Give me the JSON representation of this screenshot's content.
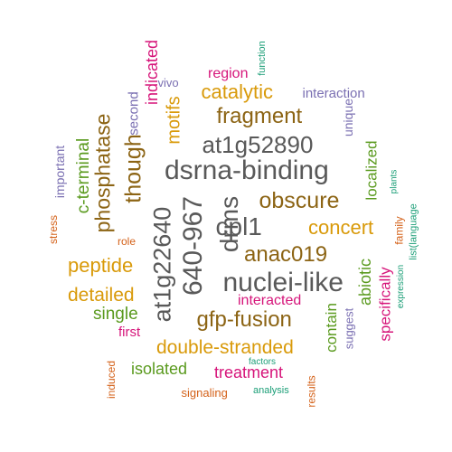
{
  "words": [
    {
      "text": "dsrna-binding",
      "color": "#595959"
    },
    {
      "text": "at1g52890",
      "color": "#595959"
    },
    {
      "text": "cpl1",
      "color": "#595959"
    },
    {
      "text": "nuclei-like",
      "color": "#595959"
    },
    {
      "text": "drms",
      "color": "#595959"
    },
    {
      "text": "640-967",
      "color": "#595959"
    },
    {
      "text": "at1g22640",
      "color": "#595959"
    },
    {
      "text": "though",
      "color": "#8c6414"
    },
    {
      "text": "phosphatase",
      "color": "#8c6414"
    },
    {
      "text": "fragment",
      "color": "#8c6414"
    },
    {
      "text": "obscure",
      "color": "#8c6414"
    },
    {
      "text": "anac019",
      "color": "#8c6414"
    },
    {
      "text": "gfp-fusion",
      "color": "#8c6414"
    },
    {
      "text": "catalytic",
      "color": "#d99a0a"
    },
    {
      "text": "motifs",
      "color": "#d99a0a"
    },
    {
      "text": "concert",
      "color": "#d99a0a"
    },
    {
      "text": "peptide",
      "color": "#d99a0a"
    },
    {
      "text": "detailed",
      "color": "#d99a0a"
    },
    {
      "text": "double-stranded",
      "color": "#d99a0a"
    },
    {
      "text": "c-terminal",
      "color": "#5a9a1e"
    },
    {
      "text": "localized",
      "color": "#5a9a1e"
    },
    {
      "text": "abiotic",
      "color": "#5a9a1e"
    },
    {
      "text": "contain",
      "color": "#5a9a1e"
    },
    {
      "text": "single",
      "color": "#5a9a1e"
    },
    {
      "text": "isolated",
      "color": "#5a9a1e"
    },
    {
      "text": "indicated",
      "color": "#d6157a"
    },
    {
      "text": "region",
      "color": "#d6157a"
    },
    {
      "text": "interacted",
      "color": "#d6157a"
    },
    {
      "text": "specifically",
      "color": "#d6157a"
    },
    {
      "text": "first",
      "color": "#d6157a"
    },
    {
      "text": "treatment",
      "color": "#d6157a"
    },
    {
      "text": "second",
      "color": "#7a6fb2"
    },
    {
      "text": "interaction",
      "color": "#7a6fb2"
    },
    {
      "text": "unique",
      "color": "#7a6fb2"
    },
    {
      "text": "important",
      "color": "#7a6fb2"
    },
    {
      "text": "suggest",
      "color": "#7a6fb2"
    },
    {
      "text": "vivo",
      "color": "#7a6fb2"
    },
    {
      "text": "stress",
      "color": "#d4621a"
    },
    {
      "text": "role",
      "color": "#d4621a"
    },
    {
      "text": "family",
      "color": "#d4621a"
    },
    {
      "text": "induced",
      "color": "#d4621a"
    },
    {
      "text": "signaling",
      "color": "#d4621a"
    },
    {
      "text": "results",
      "color": "#d4621a"
    },
    {
      "text": "function",
      "color": "#1b9e77"
    },
    {
      "text": "plants",
      "color": "#1b9e77"
    },
    {
      "text": "list(language",
      "color": "#1b9e77"
    },
    {
      "text": "expression",
      "color": "#1b9e77"
    },
    {
      "text": "factors",
      "color": "#1b9e77"
    },
    {
      "text": "analysis",
      "color": "#1b9e77"
    }
  ]
}
